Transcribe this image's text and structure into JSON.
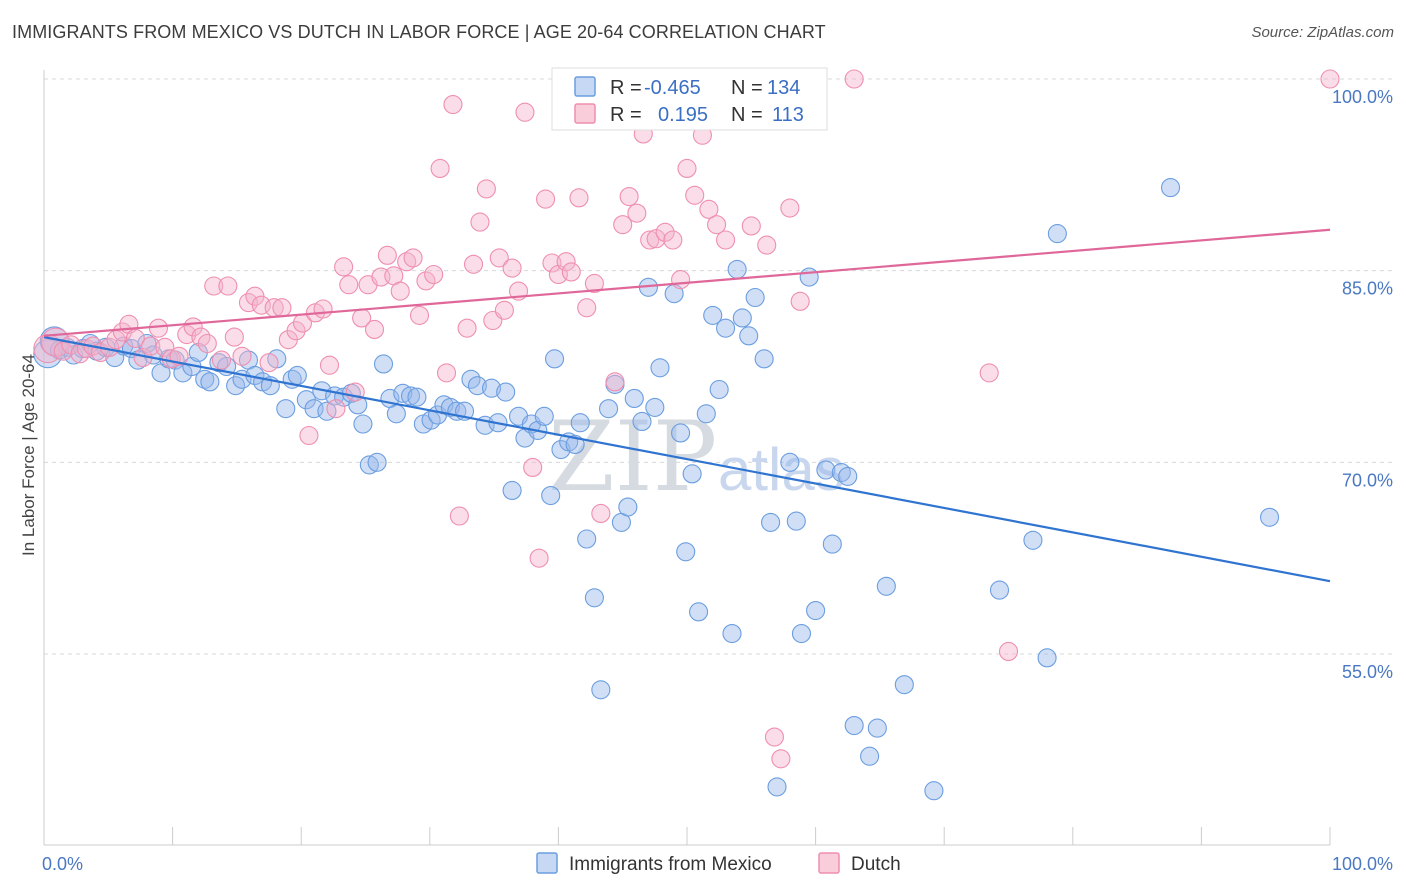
{
  "title": "IMMIGRANTS FROM MEXICO VS DUTCH IN LABOR FORCE | AGE 20-64 CORRELATION CHART",
  "source": "Source: ZipAtlas.com",
  "watermark": {
    "part1": "ZIP",
    "part2": "atlas"
  },
  "legend": {
    "rows": [
      {
        "r_label": "R =",
        "r_value": "-0.465",
        "n_label": "N =",
        "n_value": "134",
        "color": "#6b9ee0"
      },
      {
        "r_label": "R =",
        "r_value": "0.195",
        "n_label": "N =",
        "n_value": "113",
        "color": "#ef8fb0"
      }
    ]
  },
  "chart_data": {
    "type": "scatter",
    "title": "IMMIGRANTS FROM MEXICO VS DUTCH IN LABOR FORCE | AGE 20-64 CORRELATION CHART",
    "xlabel": "",
    "ylabel": "In Labor Force | Age 20-64",
    "xlim": [
      0,
      100
    ],
    "ylim": [
      40,
      102
    ],
    "x_tick_labels": [
      "0.0%",
      "100.0%"
    ],
    "y_ticks": [
      55,
      70,
      85,
      100
    ],
    "y_tick_labels": [
      "55.0%",
      "70.0%",
      "85.0%",
      "100.0%"
    ],
    "grid": true,
    "legend_position": "top-center",
    "series": [
      {
        "name": "Immigrants from Mexico",
        "color": "#6b9ee0",
        "trend": {
          "x": [
            0,
            100
          ],
          "y": [
            79.8,
            60.7
          ]
        },
        "points": [
          [
            0.3,
            78.5
          ],
          [
            0.8,
            79.5
          ],
          [
            1.2,
            78.8
          ],
          [
            1.8,
            79.0
          ],
          [
            2.3,
            78.4
          ],
          [
            3.0,
            78.9
          ],
          [
            3.6,
            79.3
          ],
          [
            4.1,
            78.7
          ],
          [
            4.8,
            79.0
          ],
          [
            5.5,
            78.2
          ],
          [
            6.2,
            79.1
          ],
          [
            6.8,
            78.9
          ],
          [
            7.3,
            78.0
          ],
          [
            8.0,
            79.3
          ],
          [
            8.5,
            78.4
          ],
          [
            9.1,
            77.0
          ],
          [
            9.7,
            78.1
          ],
          [
            10.2,
            78.0
          ],
          [
            10.8,
            77.0
          ],
          [
            11.5,
            77.5
          ],
          [
            12.0,
            78.6
          ],
          [
            12.5,
            76.5
          ],
          [
            12.9,
            76.3
          ],
          [
            13.6,
            77.8
          ],
          [
            14.2,
            77.5
          ],
          [
            14.9,
            76.0
          ],
          [
            15.4,
            76.5
          ],
          [
            15.9,
            78.0
          ],
          [
            16.4,
            76.8
          ],
          [
            17.0,
            76.3
          ],
          [
            17.6,
            76.0
          ],
          [
            18.1,
            78.1
          ],
          [
            18.8,
            74.2
          ],
          [
            19.3,
            76.5
          ],
          [
            19.7,
            76.8
          ],
          [
            20.4,
            74.9
          ],
          [
            21.0,
            74.2
          ],
          [
            21.6,
            75.6
          ],
          [
            22.0,
            74.0
          ],
          [
            22.6,
            75.2
          ],
          [
            23.3,
            75.1
          ],
          [
            23.9,
            75.4
          ],
          [
            24.4,
            74.5
          ],
          [
            24.8,
            73.0
          ],
          [
            25.3,
            69.8
          ],
          [
            25.9,
            70.0
          ],
          [
            26.4,
            77.7
          ],
          [
            26.9,
            75.0
          ],
          [
            27.4,
            73.8
          ],
          [
            27.9,
            75.4
          ],
          [
            28.5,
            75.2
          ],
          [
            29.0,
            75.1
          ],
          [
            29.5,
            73.0
          ],
          [
            30.1,
            73.3
          ],
          [
            30.6,
            73.7
          ],
          [
            31.1,
            74.5
          ],
          [
            31.6,
            74.3
          ],
          [
            32.1,
            74.0
          ],
          [
            32.7,
            74.0
          ],
          [
            33.2,
            76.5
          ],
          [
            33.7,
            76.0
          ],
          [
            34.3,
            72.9
          ],
          [
            34.8,
            75.8
          ],
          [
            35.3,
            73.1
          ],
          [
            35.9,
            75.5
          ],
          [
            36.4,
            67.8
          ],
          [
            36.9,
            73.6
          ],
          [
            37.4,
            71.9
          ],
          [
            37.9,
            73.0
          ],
          [
            38.4,
            72.5
          ],
          [
            38.9,
            73.6
          ],
          [
            39.4,
            67.4
          ],
          [
            39.7,
            78.1
          ],
          [
            40.2,
            71.0
          ],
          [
            40.8,
            71.6
          ],
          [
            41.3,
            71.4
          ],
          [
            41.7,
            73.1
          ],
          [
            42.2,
            64.0
          ],
          [
            42.8,
            59.4
          ],
          [
            43.3,
            52.2
          ],
          [
            43.9,
            74.2
          ],
          [
            44.4,
            76.1
          ],
          [
            44.9,
            65.3
          ],
          [
            45.4,
            66.5
          ],
          [
            45.9,
            75.0
          ],
          [
            46.5,
            73.2
          ],
          [
            47.0,
            83.7
          ],
          [
            47.5,
            74.3
          ],
          [
            47.9,
            77.4
          ],
          [
            49.0,
            83.2
          ],
          [
            49.5,
            72.3
          ],
          [
            49.9,
            63.0
          ],
          [
            50.4,
            69.1
          ],
          [
            50.9,
            58.3
          ],
          [
            51.5,
            73.8
          ],
          [
            52.0,
            81.5
          ],
          [
            52.5,
            75.7
          ],
          [
            53.0,
            80.5
          ],
          [
            53.5,
            56.6
          ],
          [
            53.9,
            85.1
          ],
          [
            54.3,
            81.3
          ],
          [
            54.8,
            79.9
          ],
          [
            55.3,
            82.9
          ],
          [
            56.0,
            78.1
          ],
          [
            56.5,
            65.3
          ],
          [
            57.0,
            44.6
          ],
          [
            58.0,
            70.0
          ],
          [
            58.5,
            65.4
          ],
          [
            58.9,
            56.6
          ],
          [
            59.5,
            84.5
          ],
          [
            60.0,
            58.4
          ],
          [
            60.8,
            69.4
          ],
          [
            61.3,
            63.6
          ],
          [
            62.0,
            69.2
          ],
          [
            62.5,
            68.9
          ],
          [
            63.0,
            49.4
          ],
          [
            64.2,
            47.0
          ],
          [
            64.8,
            49.2
          ],
          [
            65.5,
            60.3
          ],
          [
            66.9,
            52.6
          ],
          [
            69.2,
            44.3
          ],
          [
            74.3,
            60.0
          ],
          [
            76.9,
            63.9
          ],
          [
            78.0,
            54.7
          ],
          [
            78.8,
            87.9
          ],
          [
            87.6,
            91.5
          ],
          [
            95.3,
            65.7
          ]
        ]
      },
      {
        "name": "Dutch",
        "color": "#ef8fb0",
        "trend": {
          "x": [
            0,
            100
          ],
          "y": [
            79.9,
            88.2
          ]
        },
        "points": [
          [
            0.3,
            78.9
          ],
          [
            0.9,
            79.4
          ],
          [
            1.5,
            78.7
          ],
          [
            2.1,
            79.2
          ],
          [
            2.8,
            78.5
          ],
          [
            3.3,
            78.9
          ],
          [
            3.8,
            79.1
          ],
          [
            4.4,
            78.6
          ],
          [
            5.1,
            79.0
          ],
          [
            5.6,
            79.6
          ],
          [
            6.1,
            80.2
          ],
          [
            6.6,
            80.8
          ],
          [
            7.1,
            79.7
          ],
          [
            7.7,
            78.2
          ],
          [
            8.3,
            79.1
          ],
          [
            8.9,
            80.5
          ],
          [
            9.4,
            79.0
          ],
          [
            9.9,
            78.1
          ],
          [
            10.5,
            78.3
          ],
          [
            11.1,
            80.0
          ],
          [
            11.6,
            80.6
          ],
          [
            12.2,
            79.8
          ],
          [
            12.7,
            79.3
          ],
          [
            13.2,
            83.8
          ],
          [
            13.8,
            78.0
          ],
          [
            14.3,
            83.8
          ],
          [
            14.8,
            79.8
          ],
          [
            15.4,
            78.3
          ],
          [
            15.9,
            82.5
          ],
          [
            16.4,
            83.0
          ],
          [
            16.9,
            82.3
          ],
          [
            17.5,
            77.8
          ],
          [
            17.9,
            82.1
          ],
          [
            18.5,
            82.1
          ],
          [
            19.0,
            79.6
          ],
          [
            19.6,
            80.3
          ],
          [
            20.1,
            80.9
          ],
          [
            20.6,
            72.1
          ],
          [
            21.1,
            81.7
          ],
          [
            21.7,
            82.0
          ],
          [
            22.2,
            77.6
          ],
          [
            22.7,
            74.2
          ],
          [
            23.3,
            85.3
          ],
          [
            23.7,
            83.9
          ],
          [
            24.2,
            75.5
          ],
          [
            24.7,
            81.3
          ],
          [
            25.2,
            83.9
          ],
          [
            25.7,
            80.4
          ],
          [
            26.2,
            84.5
          ],
          [
            26.7,
            86.2
          ],
          [
            27.2,
            84.6
          ],
          [
            27.7,
            83.4
          ],
          [
            28.2,
            85.7
          ],
          [
            28.7,
            86.0
          ],
          [
            29.2,
            81.5
          ],
          [
            29.7,
            84.2
          ],
          [
            30.3,
            84.7
          ],
          [
            30.8,
            93.0
          ],
          [
            31.3,
            77.0
          ],
          [
            31.8,
            98.0
          ],
          [
            32.3,
            65.8
          ],
          [
            32.9,
            80.5
          ],
          [
            33.4,
            85.5
          ],
          [
            33.9,
            88.8
          ],
          [
            34.4,
            91.4
          ],
          [
            34.9,
            81.1
          ],
          [
            35.4,
            86.0
          ],
          [
            35.8,
            81.9
          ],
          [
            36.4,
            85.2
          ],
          [
            36.9,
            83.4
          ],
          [
            37.4,
            97.4
          ],
          [
            38.0,
            69.6
          ],
          [
            38.5,
            62.5
          ],
          [
            39.0,
            90.6
          ],
          [
            39.5,
            85.6
          ],
          [
            40.0,
            84.7
          ],
          [
            40.6,
            85.7
          ],
          [
            41.0,
            84.9
          ],
          [
            41.6,
            90.7
          ],
          [
            42.2,
            82.1
          ],
          [
            42.8,
            84.0
          ],
          [
            43.3,
            66.0
          ],
          [
            44.4,
            76.3
          ],
          [
            45.0,
            88.6
          ],
          [
            45.5,
            90.8
          ],
          [
            46.1,
            89.5
          ],
          [
            46.6,
            95.7
          ],
          [
            47.1,
            87.4
          ],
          [
            47.6,
            87.5
          ],
          [
            48.3,
            88.0
          ],
          [
            48.9,
            87.4
          ],
          [
            49.5,
            84.3
          ],
          [
            50.0,
            93.0
          ],
          [
            50.6,
            90.9
          ],
          [
            51.2,
            95.6
          ],
          [
            51.7,
            89.8
          ],
          [
            52.3,
            88.6
          ],
          [
            53.0,
            87.4
          ],
          [
            55.0,
            88.5
          ],
          [
            56.2,
            87.0
          ],
          [
            56.8,
            48.5
          ],
          [
            57.3,
            46.8
          ],
          [
            58.0,
            89.9
          ],
          [
            58.8,
            82.6
          ],
          [
            63.0,
            100.0
          ],
          [
            73.5,
            77.0
          ],
          [
            75.0,
            55.2
          ],
          [
            100.0,
            100.0
          ]
        ]
      }
    ]
  },
  "bottom_legend": [
    {
      "label": "Immigrants from Mexico",
      "color": "#6b9ee0"
    },
    {
      "label": "Dutch",
      "color": "#ef8fb0"
    }
  ]
}
